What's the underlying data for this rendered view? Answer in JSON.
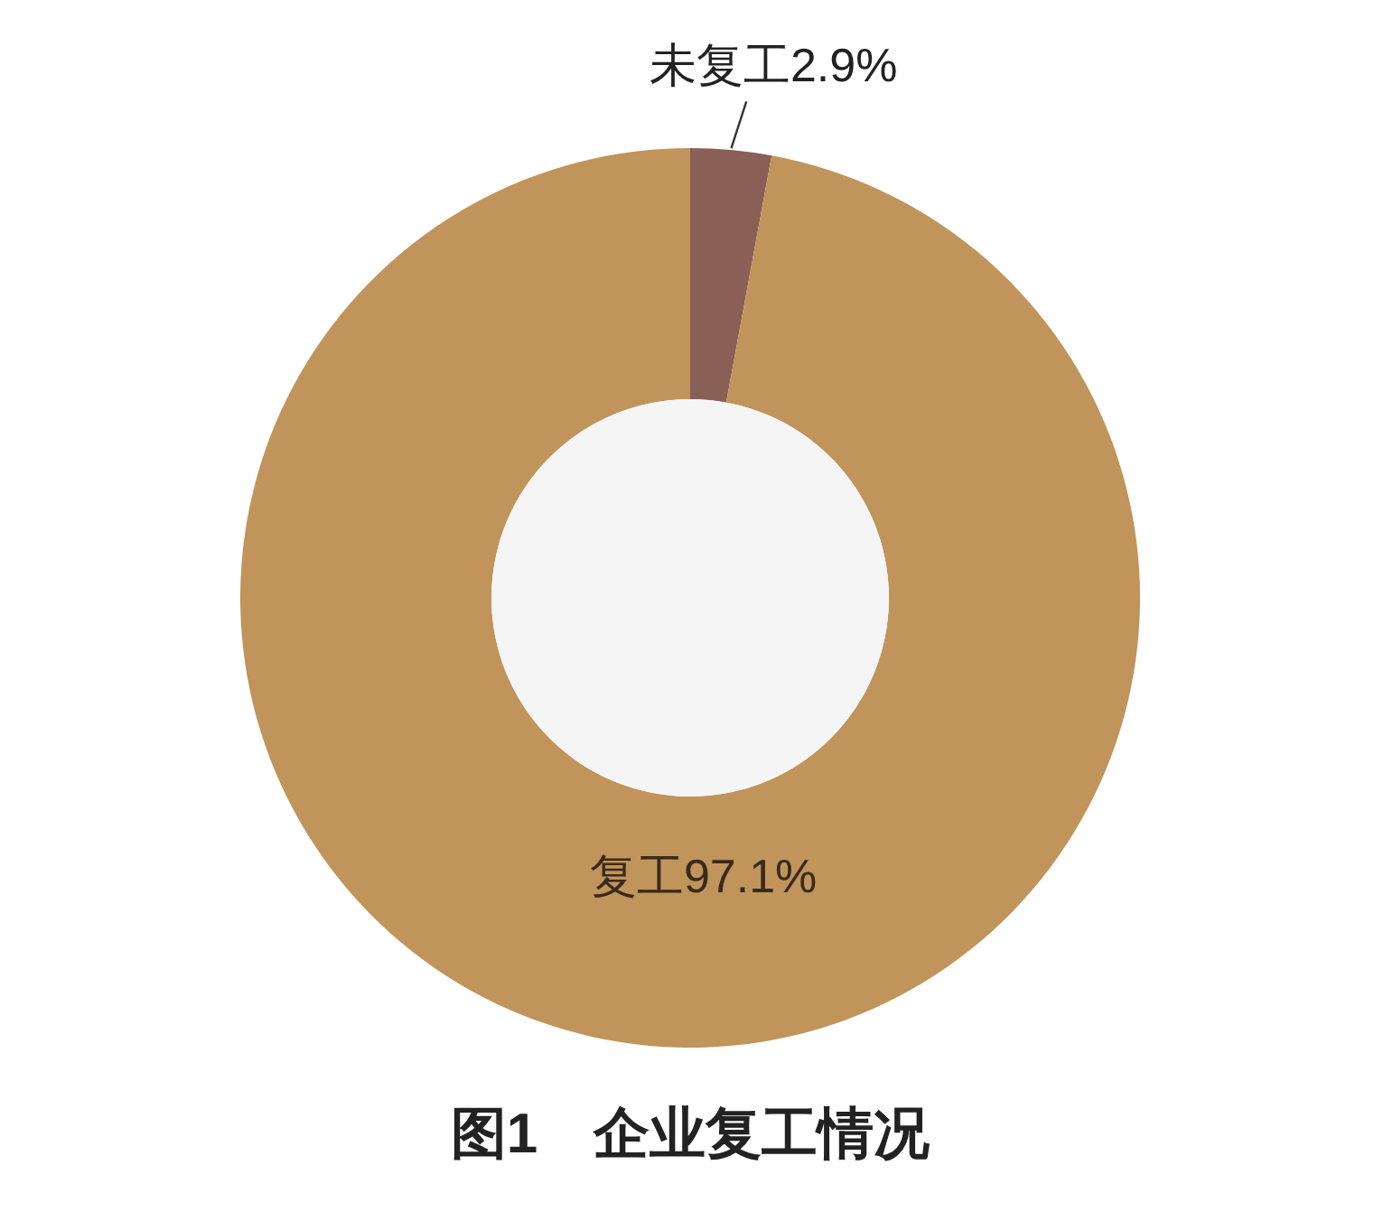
{
  "chart_data": {
    "type": "donut",
    "title": "图1　企业复工情况",
    "categories": [
      "未复工",
      "复工"
    ],
    "values": [
      2.9,
      97.1
    ],
    "colors": [
      "#8a5f56",
      "#c0945a"
    ],
    "value_labels": [
      "2.9%",
      "97.1%"
    ]
  }
}
